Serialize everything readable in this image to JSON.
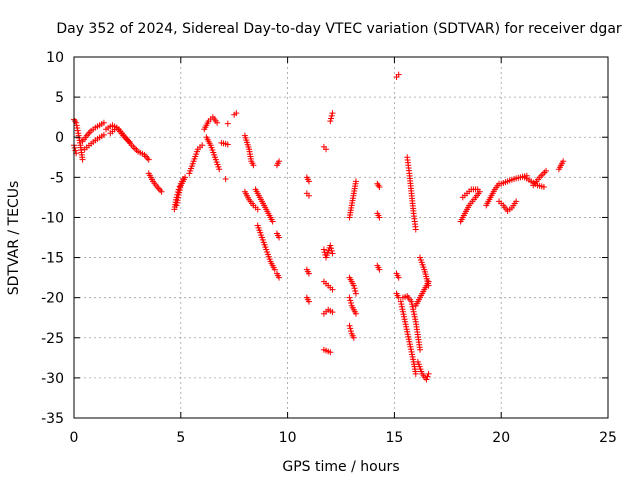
{
  "chart_data": {
    "type": "scatter",
    "title": "Day 352 of 2024, Sidereal Day-to-day VTEC variation (SDTVAR) for receiver dgar",
    "xlabel": "GPS time / hours",
    "ylabel": "SDTVAR / TECUs",
    "xlim": [
      0,
      25
    ],
    "ylim": [
      -35,
      10
    ],
    "xticks": [
      0,
      5,
      10,
      15,
      20,
      25
    ],
    "yticks": [
      -35,
      -30,
      -25,
      -20,
      -15,
      -10,
      -5,
      0,
      5,
      10
    ],
    "grid": true,
    "legend": "none",
    "marker": "plus",
    "color": "#ff0000",
    "segments": [
      {
        "x": [
          0.0,
          0.1,
          0.2,
          0.3,
          0.4
        ],
        "y": [
          2.2,
          1.8,
          0.5,
          -1.0,
          -2.8
        ]
      },
      {
        "x": [
          0.0,
          0.1
        ],
        "y": [
          -1.0,
          -2.0
        ]
      },
      {
        "x": [
          0.4,
          0.6,
          0.8,
          1.0,
          1.2,
          1.4
        ],
        "y": [
          -0.5,
          0.2,
          0.8,
          1.2,
          1.5,
          1.8
        ]
      },
      {
        "x": [
          0.5,
          0.8,
          1.1,
          1.4
        ],
        "y": [
          -1.5,
          -0.8,
          -0.2,
          0.3
        ]
      },
      {
        "x": [
          1.5,
          1.8,
          2.1,
          2.4,
          2.7,
          3.0,
          3.3,
          3.5
        ],
        "y": [
          1.0,
          1.5,
          1.0,
          0.0,
          -1.0,
          -1.8,
          -2.2,
          -2.8
        ]
      },
      {
        "x": [
          1.7,
          2.0,
          2.3,
          2.6
        ],
        "y": [
          0.5,
          1.2,
          0.2,
          -0.6
        ]
      },
      {
        "x": [
          3.5,
          3.7,
          3.9,
          4.1
        ],
        "y": [
          -4.5,
          -5.5,
          -6.2,
          -6.8
        ]
      },
      {
        "x": [
          4.7,
          4.8,
          4.9,
          5.0,
          5.1
        ],
        "y": [
          -9.0,
          -7.5,
          -6.5,
          -5.8,
          -5.2
        ]
      },
      {
        "x": [
          4.8,
          4.9,
          5.0,
          5.1,
          5.2
        ],
        "y": [
          -8.5,
          -7.2,
          -6.0,
          -5.5,
          -5.0
        ]
      },
      {
        "x": [
          5.4,
          5.6,
          5.8,
          6.0
        ],
        "y": [
          -4.5,
          -3.0,
          -1.5,
          -1.0
        ]
      },
      {
        "x": [
          6.1,
          6.3,
          6.5,
          6.7
        ],
        "y": [
          1.0,
          2.0,
          2.5,
          1.8
        ]
      },
      {
        "x": [
          6.2,
          6.4,
          6.6,
          6.8
        ],
        "y": [
          0.0,
          -1.0,
          -2.5,
          -4.0
        ]
      },
      {
        "x": [
          6.9,
          7.2
        ],
        "y": [
          -0.7,
          -0.9
        ]
      },
      {
        "x": [
          7.1
        ],
        "y": [
          -5.2
        ]
      },
      {
        "x": [
          7.2
        ],
        "y": [
          1.7
        ]
      },
      {
        "x": [
          7.5,
          7.6
        ],
        "y": [
          2.8,
          3.0
        ]
      },
      {
        "x": [
          8.0,
          8.2,
          8.3,
          8.4
        ],
        "y": [
          0.2,
          -1.5,
          -3.0,
          -3.5
        ]
      },
      {
        "x": [
          8.0,
          8.2,
          8.4,
          8.6
        ],
        "y": [
          -6.8,
          -7.8,
          -8.5,
          -9.0
        ]
      },
      {
        "x": [
          8.5,
          8.7,
          8.9,
          9.1,
          9.3
        ],
        "y": [
          -6.5,
          -7.5,
          -8.5,
          -9.5,
          -10.5
        ]
      },
      {
        "x": [
          8.6,
          8.8,
          9.0,
          9.2,
          9.4
        ],
        "y": [
          -11.0,
          -12.5,
          -14.0,
          -15.5,
          -16.5
        ]
      },
      {
        "x": [
          9.5,
          9.6
        ],
        "y": [
          -3.5,
          -3.0
        ]
      },
      {
        "x": [
          9.5,
          9.6
        ],
        "y": [
          -12.0,
          -12.5
        ]
      },
      {
        "x": [
          9.5,
          9.6
        ],
        "y": [
          -17.0,
          -17.5
        ]
      },
      {
        "x": [
          10.9,
          11.0
        ],
        "y": [
          -5.0,
          -5.5
        ]
      },
      {
        "x": [
          10.9,
          11.0
        ],
        "y": [
          -7.0,
          -7.3
        ]
      },
      {
        "x": [
          10.9,
          11.0
        ],
        "y": [
          -16.5,
          -17.0
        ]
      },
      {
        "x": [
          10.9,
          11.0
        ],
        "y": [
          -20.0,
          -20.5
        ]
      },
      {
        "x": [
          11.7,
          11.8
        ],
        "y": [
          -1.2,
          -1.5
        ]
      },
      {
        "x": [
          12.0,
          12.1
        ],
        "y": [
          2.0,
          3.0
        ]
      },
      {
        "x": [
          11.7,
          11.8,
          12.0,
          12.1
        ],
        "y": [
          -14.0,
          -15.0,
          -13.5,
          -14.5
        ]
      },
      {
        "x": [
          11.7,
          11.9,
          12.1
        ],
        "y": [
          -18.0,
          -18.5,
          -19.0
        ]
      },
      {
        "x": [
          11.7,
          11.9,
          12.1
        ],
        "y": [
          -22.0,
          -21.5,
          -21.8
        ]
      },
      {
        "x": [
          11.7,
          12.0
        ],
        "y": [
          -26.5,
          -26.8
        ]
      },
      {
        "x": [
          12.9,
          13.0,
          13.1,
          13.2
        ],
        "y": [
          -10.0,
          -8.5,
          -7.0,
          -5.5
        ]
      },
      {
        "x": [
          12.9,
          13.0,
          13.1,
          13.2
        ],
        "y": [
          -17.5,
          -18.0,
          -18.5,
          -19.5
        ]
      },
      {
        "x": [
          12.9,
          13.0,
          13.1,
          13.2
        ],
        "y": [
          -20.0,
          -21.0,
          -21.5,
          -22.0
        ]
      },
      {
        "x": [
          12.9,
          13.0,
          13.1
        ],
        "y": [
          -23.5,
          -24.5,
          -25.0
        ]
      },
      {
        "x": [
          14.2,
          14.3
        ],
        "y": [
          -5.8,
          -6.2
        ]
      },
      {
        "x": [
          14.2,
          14.3
        ],
        "y": [
          -9.5,
          -10.0
        ]
      },
      {
        "x": [
          14.2,
          14.3
        ],
        "y": [
          -16.0,
          -16.5
        ]
      },
      {
        "x": [
          15.1,
          15.2
        ],
        "y": [
          7.5,
          7.8
        ]
      },
      {
        "x": [
          15.1,
          15.2
        ],
        "y": [
          -17.0,
          -17.5
        ]
      },
      {
        "x": [
          15.1,
          15.2
        ],
        "y": [
          -19.5,
          -20.0
        ]
      },
      {
        "x": [
          15.6,
          15.7,
          15.8,
          15.9,
          16.0
        ],
        "y": [
          -2.5,
          -4.5,
          -7.0,
          -9.5,
          -11.5
        ]
      },
      {
        "x": [
          15.3,
          15.5,
          15.7,
          15.9,
          16.0
        ],
        "y": [
          -20.5,
          -23.0,
          -25.5,
          -28.0,
          -29.5
        ]
      },
      {
        "x": [
          15.4,
          15.6,
          15.8,
          16.0,
          16.2
        ],
        "y": [
          -20.0,
          -19.8,
          -20.5,
          -23.0,
          -26.5
        ]
      },
      {
        "x": [
          16.1,
          16.3,
          16.5,
          16.6
        ],
        "y": [
          -28.0,
          -29.5,
          -30.2,
          -29.5
        ]
      },
      {
        "x": [
          16.2,
          16.4,
          16.6
        ],
        "y": [
          -15.0,
          -16.5,
          -18.5
        ]
      },
      {
        "x": [
          16.0,
          16.2,
          16.4,
          16.6
        ],
        "y": [
          -21.0,
          -20.0,
          -19.0,
          -18.0
        ]
      },
      {
        "x": [
          18.1,
          18.3,
          18.5,
          18.8,
          19.0
        ],
        "y": [
          -10.5,
          -9.5,
          -8.5,
          -7.5,
          -6.8
        ]
      },
      {
        "x": [
          18.2,
          18.4,
          18.6,
          18.9
        ],
        "y": [
          -7.5,
          -7.0,
          -6.5,
          -6.5
        ]
      },
      {
        "x": [
          19.3,
          19.5,
          19.7,
          19.9
        ],
        "y": [
          -8.5,
          -7.5,
          -6.5,
          -5.8
        ]
      },
      {
        "x": [
          19.9,
          20.1,
          20.3,
          20.5,
          20.7
        ],
        "y": [
          -8.0,
          -8.5,
          -9.2,
          -8.8,
          -8.0
        ]
      },
      {
        "x": [
          20.0,
          20.3,
          20.6,
          20.9,
          21.2
        ],
        "y": [
          -5.8,
          -5.5,
          -5.2,
          -5.0,
          -4.8
        ]
      },
      {
        "x": [
          21.1,
          21.4,
          21.7,
          22.0
        ],
        "y": [
          -5.0,
          -5.5,
          -6.0,
          -6.2
        ]
      },
      {
        "x": [
          21.5,
          21.8,
          22.1
        ],
        "y": [
          -6.0,
          -5.0,
          -4.2
        ]
      },
      {
        "x": [
          22.7,
          22.8,
          22.9
        ],
        "y": [
          -4.0,
          -3.5,
          -3.0
        ]
      }
    ]
  }
}
